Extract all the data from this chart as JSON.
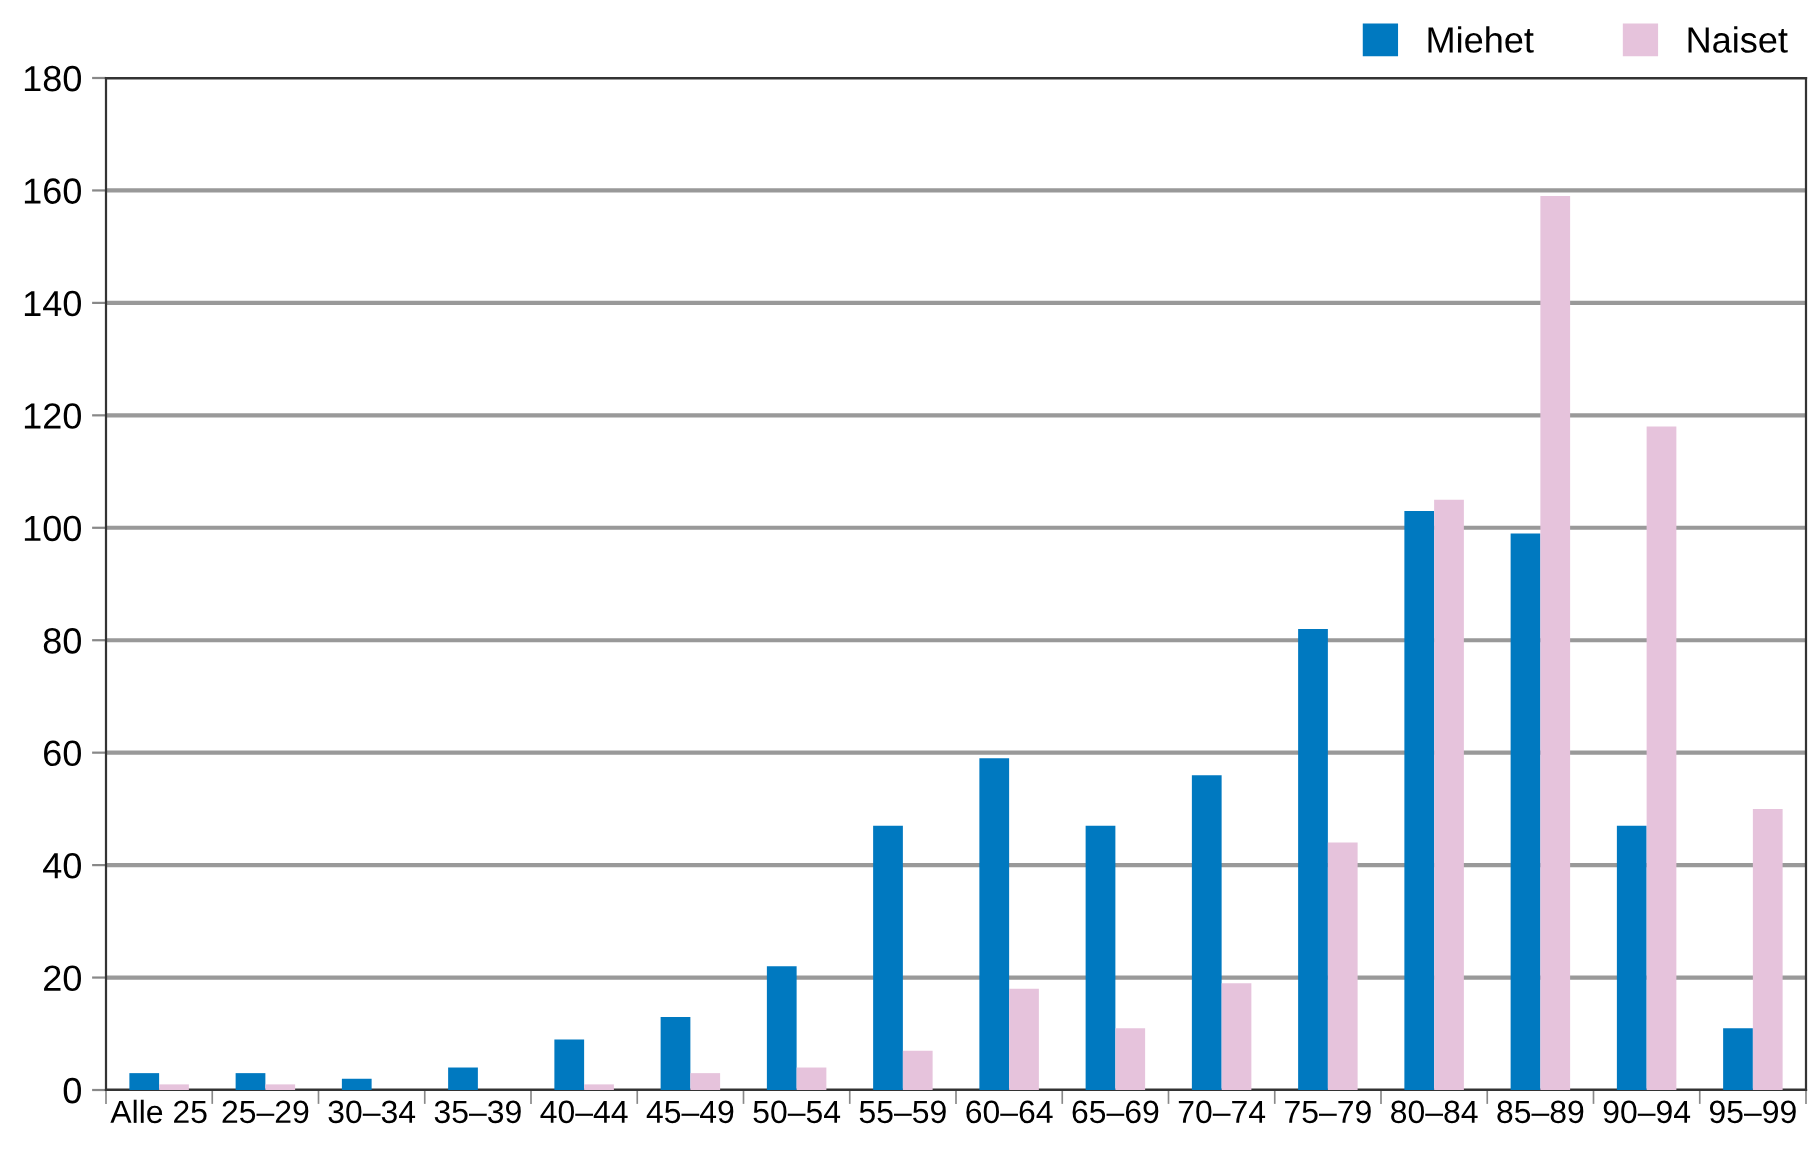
{
  "chart_data": {
    "type": "bar",
    "categories": [
      "Alle 25",
      "25–29",
      "30–34",
      "35–39",
      "40–44",
      "45–49",
      "50–54",
      "55–59",
      "60–64",
      "65–69",
      "70–74",
      "75–79",
      "80–84",
      "85–89",
      "90–94",
      "95–99"
    ],
    "series": [
      {
        "name": "Miehet",
        "color": "#0079c0",
        "values": [
          3,
          3,
          2,
          4,
          9,
          13,
          22,
          47,
          59,
          47,
          56,
          82,
          103,
          99,
          47,
          11
        ]
      },
      {
        "name": "Naiset",
        "color": "#e6c3dc",
        "values": [
          1,
          1,
          0,
          0,
          1,
          3,
          4,
          7,
          18,
          11,
          19,
          44,
          105,
          159,
          118,
          50
        ]
      }
    ],
    "ylim": [
      0,
      180
    ],
    "yticks": [
      0,
      20,
      40,
      60,
      80,
      100,
      120,
      140,
      160,
      180
    ],
    "grid": "y",
    "legend": "top right"
  }
}
